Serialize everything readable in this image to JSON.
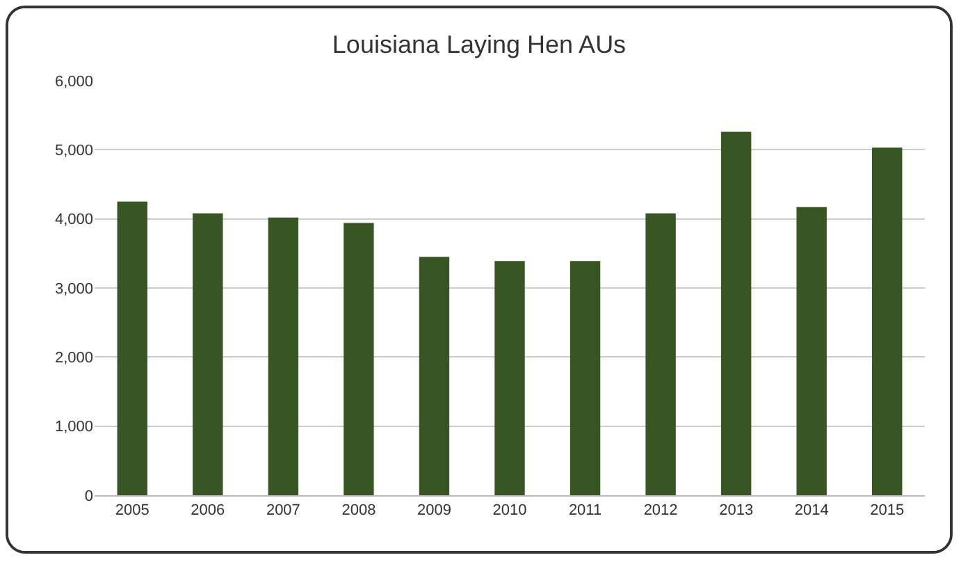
{
  "chart_data": {
    "type": "bar",
    "title": "Louisiana Laying Hen AUs",
    "categories": [
      "2005",
      "2006",
      "2007",
      "2008",
      "2009",
      "2010",
      "2011",
      "2012",
      "2013",
      "2014",
      "2015"
    ],
    "values": [
      4250,
      4080,
      4020,
      3940,
      3450,
      3390,
      3390,
      4080,
      5260,
      4170,
      5030
    ],
    "color": "#375623",
    "ylim": [
      0,
      6000
    ],
    "yticks": [
      {
        "value": 0,
        "label": "0"
      },
      {
        "value": 1000,
        "label": "1,000"
      },
      {
        "value": 2000,
        "label": "2,000"
      },
      {
        "value": 3000,
        "label": "3,000"
      },
      {
        "value": 4000,
        "label": "4,000"
      },
      {
        "value": 5000,
        "label": "5,000"
      },
      {
        "value": 6000,
        "label": "6,000"
      }
    ],
    "grid": "y"
  }
}
